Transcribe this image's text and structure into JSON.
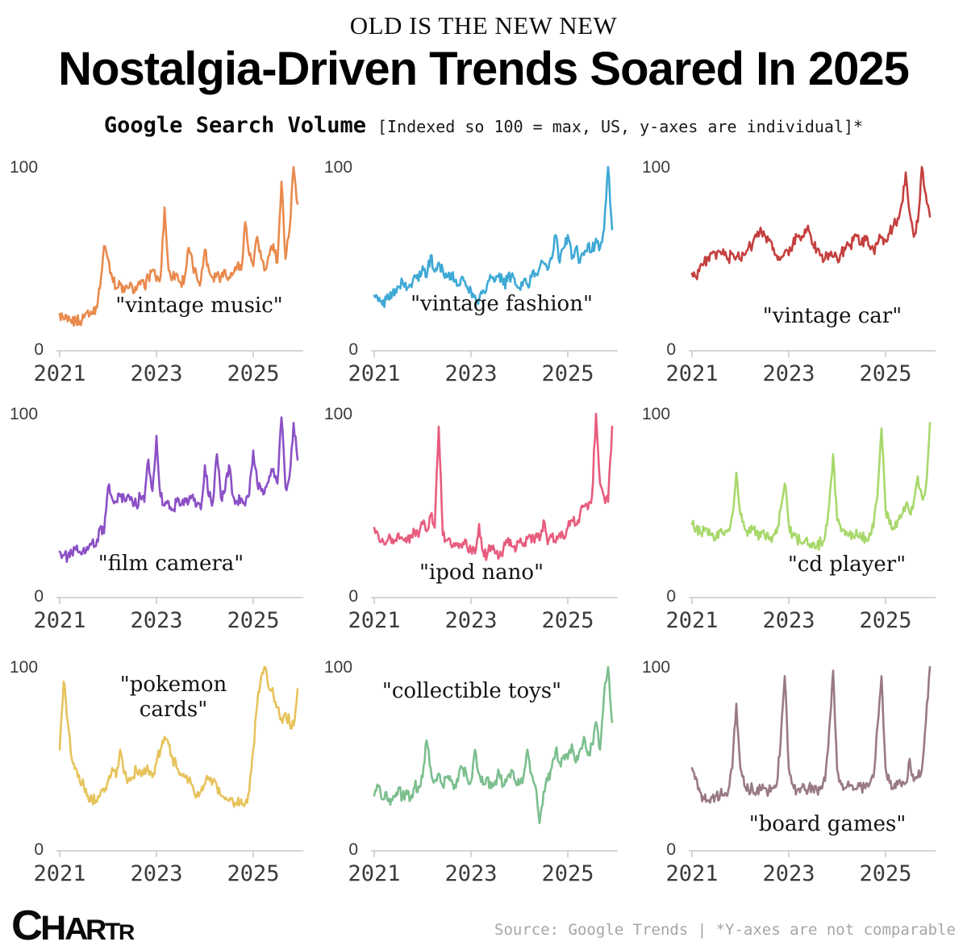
{
  "header": {
    "kicker": "OLD IS THE NEW NEW",
    "title": "Nostalgia-Driven Trends Soared In 2025",
    "subtitle_bold": "Google Search Volume",
    "subtitle_note": "[Indexed so 100 = max, US, y-axes are individual]*"
  },
  "axis": {
    "y_max_label": "100",
    "y_min_label": "0",
    "x_ticks": [
      "2021",
      "2023",
      "2025"
    ]
  },
  "footer": {
    "logo": "CHARTR",
    "source": "Source: Google Trends | *Y-axes are not comparable"
  },
  "chart_data": [
    {
      "type": "line",
      "title": "\"vintage music\"",
      "series_name": "vintage music",
      "color": "#E98A4D",
      "x_start": "2021-01",
      "x_frequency": "monthly",
      "x_ticks": [
        "2021",
        "2023",
        "2025"
      ],
      "ylim": [
        0,
        100
      ],
      "grid": false,
      "values": [
        20,
        17,
        16,
        15,
        17,
        16,
        18,
        22,
        20,
        24,
        34,
        57,
        50,
        40,
        34,
        36,
        32,
        34,
        35,
        33,
        36,
        35,
        40,
        44,
        38,
        40,
        78,
        44,
        40,
        42,
        37,
        40,
        56,
        46,
        40,
        38,
        55,
        44,
        40,
        42,
        40,
        44,
        40,
        42,
        46,
        44,
        70,
        52,
        46,
        62,
        50,
        44,
        52,
        58,
        48,
        92,
        50,
        66,
        100,
        80
      ]
    },
    {
      "type": "line",
      "title": "\"vintage fashion\"",
      "series_name": "vintage fashion",
      "color": "#3FA9D5",
      "x_start": "2021-01",
      "x_frequency": "monthly",
      "x_ticks": [
        "2021",
        "2023",
        "2025"
      ],
      "ylim": [
        0,
        100
      ],
      "grid": false,
      "values": [
        30,
        27,
        25,
        28,
        32,
        30,
        35,
        38,
        33,
        36,
        41,
        38,
        46,
        40,
        52,
        43,
        48,
        44,
        40,
        42,
        38,
        36,
        40,
        35,
        33,
        30,
        28,
        33,
        36,
        40,
        38,
        42,
        36,
        38,
        41,
        36,
        34,
        38,
        36,
        40,
        42,
        45,
        48,
        44,
        50,
        63,
        48,
        56,
        63,
        50,
        56,
        48,
        52,
        58,
        54,
        61,
        56,
        66,
        100,
        66
      ]
    },
    {
      "type": "line",
      "title": "\"vintage car\"",
      "series_name": "vintage car",
      "color": "#C4403E",
      "x_start": "2021-01",
      "x_frequency": "monthly",
      "x_ticks": [
        "2021",
        "2023",
        "2025"
      ],
      "ylim": [
        0,
        100
      ],
      "grid": false,
      "values": [
        42,
        40,
        46,
        48,
        51,
        53,
        50,
        54,
        52,
        50,
        53,
        51,
        50,
        52,
        56,
        58,
        62,
        67,
        63,
        60,
        55,
        52,
        50,
        54,
        52,
        58,
        62,
        60,
        66,
        65,
        58,
        55,
        52,
        50,
        53,
        51,
        50,
        53,
        55,
        57,
        60,
        63,
        58,
        60,
        57,
        55,
        58,
        62,
        60,
        64,
        68,
        72,
        80,
        97,
        75,
        62,
        70,
        100,
        85,
        73
      ]
    },
    {
      "type": "line",
      "title": "\"film camera\"",
      "series_name": "film camera",
      "color": "#8B50C6",
      "x_start": "2021-01",
      "x_frequency": "monthly",
      "x_ticks": [
        "2021",
        "2023",
        "2025"
      ],
      "ylim": [
        0,
        100
      ],
      "grid": false,
      "values": [
        25,
        23,
        22,
        24,
        26,
        25,
        27,
        26,
        30,
        28,
        38,
        35,
        60,
        54,
        52,
        55,
        54,
        56,
        53,
        50,
        55,
        52,
        75,
        58,
        88,
        55,
        50,
        52,
        48,
        52,
        50,
        54,
        52,
        56,
        50,
        48,
        72,
        55,
        52,
        78,
        54,
        58,
        72,
        55,
        52,
        54,
        50,
        56,
        80,
        62,
        58,
        60,
        66,
        70,
        62,
        98,
        60,
        66,
        95,
        75
      ]
    },
    {
      "type": "line",
      "title": "\"ipod nano\"",
      "series_name": "ipod nano",
      "color": "#E85C7E",
      "x_start": "2021-01",
      "x_frequency": "monthly",
      "x_ticks": [
        "2021",
        "2023",
        "2025"
      ],
      "ylim": [
        0,
        100
      ],
      "grid": false,
      "values": [
        38,
        34,
        32,
        30,
        33,
        31,
        35,
        32,
        30,
        34,
        36,
        33,
        40,
        36,
        45,
        38,
        93,
        34,
        31,
        29,
        28,
        27,
        30,
        28,
        26,
        24,
        40,
        25,
        23,
        28,
        24,
        22,
        26,
        30,
        28,
        25,
        30,
        28,
        32,
        30,
        34,
        31,
        42,
        29,
        33,
        30,
        35,
        32,
        38,
        42,
        40,
        45,
        50,
        48,
        55,
        100,
        62,
        55,
        52,
        93
      ]
    },
    {
      "type": "line",
      "title": "\"cd player\"",
      "series_name": "cd player",
      "color": "#A8D86B",
      "x_start": "2021-01",
      "x_frequency": "monthly",
      "x_ticks": [
        "2021",
        "2023",
        "2025"
      ],
      "ylim": [
        0,
        100
      ],
      "grid": false,
      "values": [
        40,
        37,
        35,
        36,
        34,
        35,
        33,
        36,
        34,
        37,
        45,
        68,
        45,
        38,
        36,
        37,
        35,
        33,
        34,
        32,
        33,
        35,
        48,
        62,
        40,
        34,
        32,
        30,
        31,
        29,
        30,
        28,
        30,
        33,
        50,
        78,
        42,
        36,
        34,
        35,
        33,
        34,
        32,
        33,
        35,
        38,
        55,
        92,
        48,
        40,
        38,
        42,
        45,
        50,
        46,
        52,
        66,
        55,
        60,
        95
      ]
    },
    {
      "type": "line",
      "title": "\"pokemon cards\"",
      "series_name": "pokemon cards",
      "color": "#E7C35B",
      "x_start": "2021-01",
      "x_frequency": "monthly",
      "x_ticks": [
        "2021",
        "2023",
        "2025"
      ],
      "ylim": [
        0,
        100
      ],
      "grid": false,
      "values": [
        55,
        92,
        70,
        50,
        45,
        38,
        35,
        30,
        28,
        27,
        30,
        32,
        38,
        45,
        40,
        55,
        42,
        38,
        40,
        44,
        42,
        45,
        43,
        40,
        48,
        55,
        62,
        58,
        50,
        45,
        42,
        40,
        38,
        35,
        30,
        32,
        36,
        40,
        38,
        35,
        30,
        28,
        27,
        26,
        25,
        28,
        26,
        32,
        55,
        80,
        95,
        100,
        88,
        85,
        78,
        72,
        75,
        70,
        68,
        88
      ]
    },
    {
      "type": "line",
      "title": "\"collectible toys\"",
      "series_name": "collectible toys",
      "color": "#7CBF8F",
      "x_start": "2021-01",
      "x_frequency": "monthly",
      "x_ticks": [
        "2021",
        "2023",
        "2025"
      ],
      "ylim": [
        0,
        100
      ],
      "grid": false,
      "values": [
        30,
        35,
        28,
        32,
        25,
        30,
        34,
        29,
        33,
        28,
        35,
        35,
        40,
        60,
        45,
        38,
        42,
        35,
        40,
        38,
        36,
        42,
        45,
        40,
        38,
        55,
        42,
        36,
        40,
        34,
        38,
        42,
        36,
        40,
        44,
        38,
        36,
        40,
        55,
        42,
        35,
        15,
        32,
        38,
        45,
        55,
        48,
        52,
        50,
        58,
        48,
        55,
        62,
        52,
        58,
        70,
        55,
        85,
        100,
        70
      ]
    },
    {
      "type": "line",
      "title": "\"board games\"",
      "series_name": "board games",
      "color": "#997A82",
      "x_start": "2021-01",
      "x_frequency": "monthly",
      "x_ticks": [
        "2021",
        "2023",
        "2025"
      ],
      "ylim": [
        0,
        100
      ],
      "grid": false,
      "values": [
        45,
        40,
        32,
        28,
        27,
        29,
        30,
        31,
        30,
        33,
        45,
        80,
        45,
        35,
        33,
        34,
        32,
        33,
        34,
        32,
        34,
        36,
        60,
        95,
        45,
        36,
        33,
        34,
        33,
        35,
        34,
        33,
        35,
        38,
        65,
        98,
        44,
        36,
        34,
        35,
        33,
        34,
        35,
        34,
        36,
        40,
        68,
        95,
        45,
        37,
        34,
        36,
        35,
        37,
        50,
        38,
        40,
        44,
        70,
        100
      ]
    }
  ]
}
